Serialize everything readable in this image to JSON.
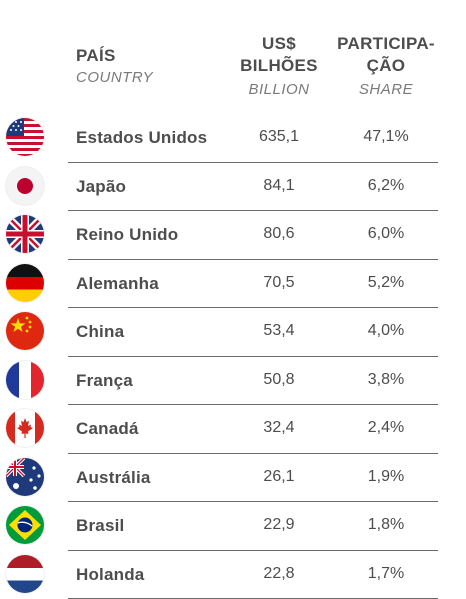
{
  "header": {
    "country_pt": "PAÍS",
    "country_en": "COUNTRY",
    "value_pt_line1": "US$",
    "value_pt_line2": "BILHÕES",
    "value_en": "BILLION",
    "share_pt_line1": "PARTICIPA-",
    "share_pt_line2": "ÇÃO",
    "share_en": "SHARE"
  },
  "rows": [
    {
      "country": "Estados Unidos",
      "value": "635,1",
      "share": "47,1%",
      "flag": "usa-flag-icon"
    },
    {
      "country": "Japão",
      "value": "84,1",
      "share": "6,2%",
      "flag": "japan-flag-icon"
    },
    {
      "country": "Reino Unido",
      "value": "80,6",
      "share": "6,0%",
      "flag": "uk-flag-icon"
    },
    {
      "country": "Alemanha",
      "value": "70,5",
      "share": "5,2%",
      "flag": "germany-flag-icon"
    },
    {
      "country": "China",
      "value": "53,4",
      "share": "4,0%",
      "flag": "china-flag-icon"
    },
    {
      "country": "França",
      "value": "50,8",
      "share": "3,8%",
      "flag": "france-flag-icon"
    },
    {
      "country": "Canadá",
      "value": "32,4",
      "share": "2,4%",
      "flag": "canada-flag-icon"
    },
    {
      "country": "Austrália",
      "value": "26,1",
      "share": "1,9%",
      "flag": "australia-flag-icon"
    },
    {
      "country": "Brasil",
      "value": "22,9",
      "share": "1,8%",
      "flag": "brazil-flag-icon"
    },
    {
      "country": "Holanda",
      "value": "22,8",
      "share": "1,7%",
      "flag": "netherlands-flag-icon"
    }
  ]
}
